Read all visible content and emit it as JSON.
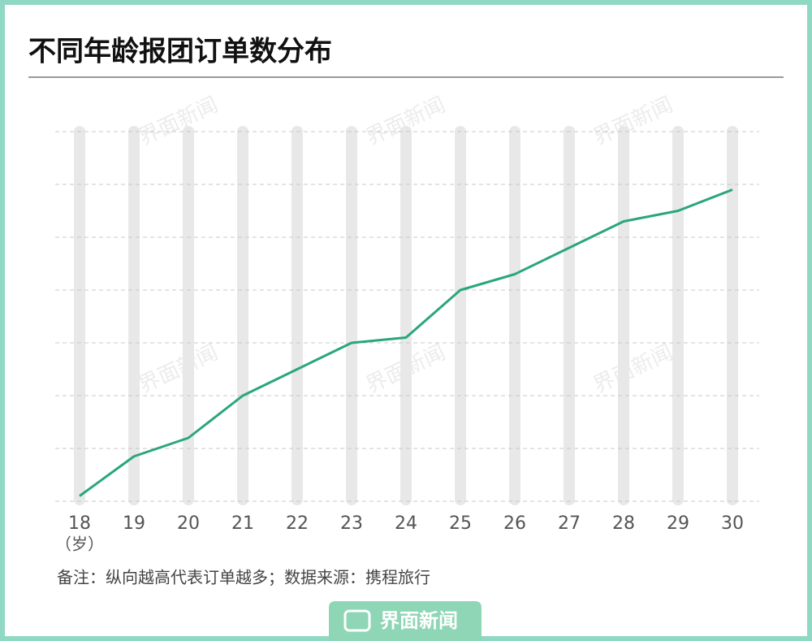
{
  "chart_data": {
    "type": "line",
    "title": "不同年龄报团订单数分布",
    "categories": [
      "18",
      "19",
      "20",
      "21",
      "22",
      "23",
      "24",
      "25",
      "26",
      "27",
      "28",
      "29",
      "30"
    ],
    "x_unit": "（岁）",
    "series": [
      {
        "name": "订单数",
        "color": "#2aa67e",
        "values": [
          0.1,
          0.85,
          1.2,
          2.0,
          2.5,
          3.0,
          3.1,
          4.0,
          4.3,
          4.8,
          5.3,
          5.5,
          5.9
        ]
      }
    ],
    "ylim": [
      0,
      7
    ],
    "yticks": [
      0,
      1,
      2,
      3,
      4,
      5,
      6,
      7
    ],
    "grid": true,
    "note": "备注：纵向越高代表订单越多；数据来源：携程旅行",
    "watermark": "界面新闻"
  }
}
